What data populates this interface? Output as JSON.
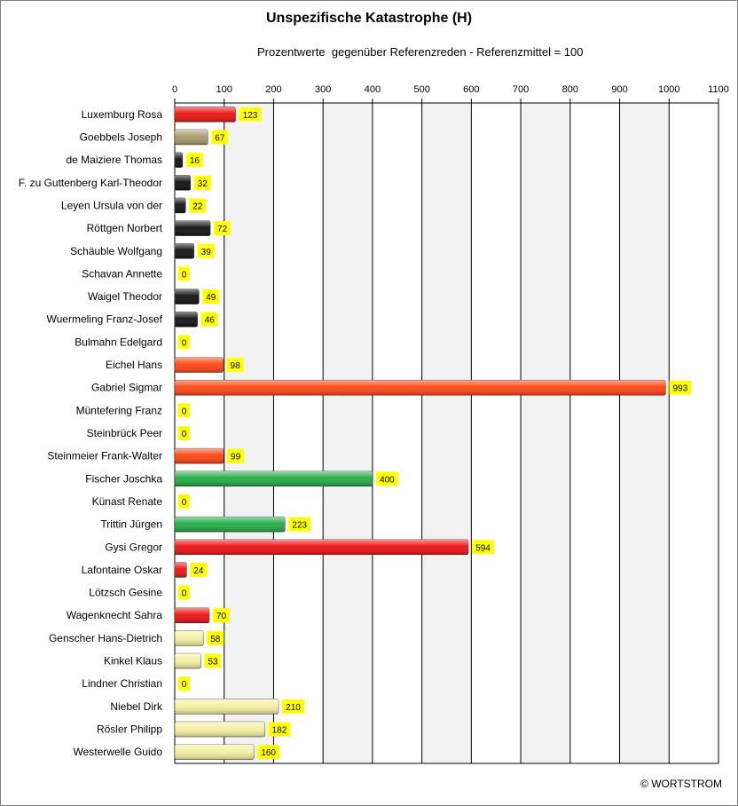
{
  "chart_data": {
    "type": "bar",
    "orientation": "horizontal",
    "title": "Unspezifische Katastrophe (H)",
    "subtitle": "Prozentwerte  gegenüber Referenzreden - Referenzmittel = 100",
    "xlim": [
      0,
      1100
    ],
    "xticks": [
      0,
      100,
      200,
      300,
      400,
      500,
      600,
      700,
      800,
      900,
      1000,
      1100
    ],
    "grid": true,
    "categories": [
      "Luxemburg Rosa",
      "Goebbels Joseph",
      "de Maiziere Thomas",
      "F. zu Guttenberg Karl-Theodor",
      "Leyen Ursula von der",
      "Röttgen Norbert",
      "Schäuble Wolfgang",
      "Schavan Annette",
      "Waigel Theodor",
      "Wuermeling Franz-Josef",
      "Bulmahn Edelgard",
      "Eichel Hans",
      "Gabriel Sigmar",
      "Müntefering Franz",
      "Steinbrück Peer",
      "Steinmeier Frank-Walter",
      "Fischer Joschka",
      "Künast Renate",
      "Trittin Jürgen",
      "Gysi Gregor",
      "Lafontaine Oskar",
      "Lötzsch Gesine",
      "Wagenknecht Sahra",
      "Genscher Hans-Dietrich",
      "Kinkel Klaus",
      "Lindner Christian",
      "Niebel Dirk",
      "Rösler Philipp",
      "Westerwelle Guido"
    ],
    "values": [
      123,
      67,
      16,
      32,
      22,
      72,
      39,
      0,
      49,
      46,
      0,
      98,
      993,
      0,
      0,
      99,
      400,
      0,
      223,
      594,
      24,
      0,
      70,
      58,
      53,
      0,
      210,
      182,
      160
    ],
    "bar_colors": [
      "#ee1111",
      "#a89a6a",
      "#111111",
      "#111111",
      "#111111",
      "#111111",
      "#111111",
      "#111111",
      "#111111",
      "#111111",
      "#ff4411",
      "#ff4411",
      "#ff4411",
      "#ff4411",
      "#ff4411",
      "#ff4411",
      "#22aa44",
      "#22aa44",
      "#22aa44",
      "#ee1111",
      "#ee1111",
      "#ee1111",
      "#ee1111",
      "#f5f0a0",
      "#f5f0a0",
      "#f5f0a0",
      "#f5f0a0",
      "#f5f0a0",
      "#f5f0a0"
    ],
    "value_label_bg": "#ffff00",
    "plot_bg_alternate": [
      "#ffffff",
      "#f2f2f2"
    ]
  },
  "footer": {
    "copyright": "© WORTSTROM"
  }
}
